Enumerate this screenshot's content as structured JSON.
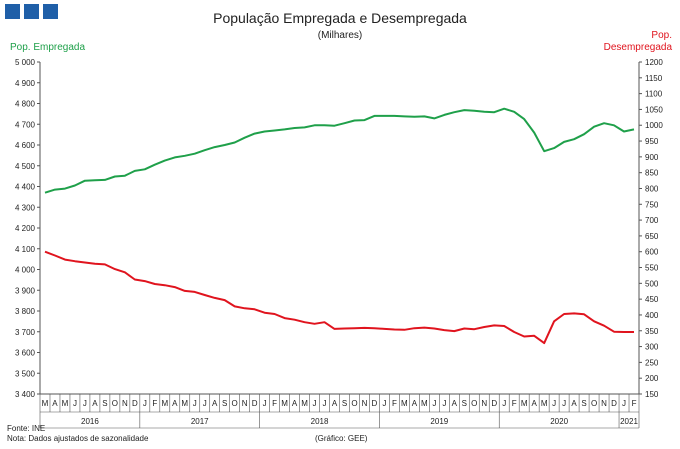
{
  "header": {
    "title": "População Empregada e Desempregada",
    "subtitle": "(Milhares)"
  },
  "axes": {
    "left_label": "Pop. Empregada",
    "right_label_line1": "Pop.",
    "right_label_line2": "Desempregada"
  },
  "footer": {
    "source": "Fonte: INE",
    "note": "Nota: Dados ajustados de sazonalidade",
    "credit": "(Gráfico: GEE)"
  },
  "colors": {
    "employed": "#1fa04a",
    "unemployed": "#e0141e",
    "logo": "#1f5fa8",
    "axis": "#555555"
  },
  "chart_data": {
    "type": "line",
    "title": "População Empregada e Desempregada",
    "subtitle": "(Milhares)",
    "x": [
      "M",
      "A",
      "M",
      "J",
      "J",
      "A",
      "S",
      "O",
      "N",
      "D",
      "J",
      "F",
      "M",
      "A",
      "M",
      "J",
      "J",
      "A",
      "S",
      "O",
      "N",
      "D",
      "J",
      "F",
      "M",
      "A",
      "M",
      "J",
      "J",
      "A",
      "S",
      "O",
      "N",
      "D",
      "J",
      "F",
      "M",
      "A",
      "M",
      "J",
      "J",
      "A",
      "S",
      "O",
      "N",
      "D",
      "J",
      "F",
      "M",
      "A",
      "M",
      "J",
      "J",
      "A",
      "S",
      "O",
      "N",
      "D",
      "J",
      "F"
    ],
    "year_labels": [
      {
        "label": "2016",
        "start": 0,
        "end": 9
      },
      {
        "label": "2017",
        "start": 10,
        "end": 21
      },
      {
        "label": "2018",
        "start": 22,
        "end": 33
      },
      {
        "label": "2019",
        "start": 34,
        "end": 45
      },
      {
        "label": "2020",
        "start": 46,
        "end": 57
      },
      {
        "label": "2021",
        "start": 58,
        "end": 59
      }
    ],
    "y_left": {
      "label": "Pop. Empregada",
      "min": 3400,
      "max": 5000,
      "step": 100
    },
    "y_right": {
      "label": "Pop. Desempregada",
      "min": 150,
      "max": 1200,
      "step": 50
    },
    "series": [
      {
        "name": "Pop. Empregada",
        "axis": "left",
        "values": [
          4370,
          4385,
          4390,
          4405,
          4428,
          4430,
          4432,
          4448,
          4452,
          4475,
          4483,
          4505,
          4525,
          4540,
          4548,
          4558,
          4575,
          4590,
          4600,
          4612,
          4635,
          4655,
          4665,
          4670,
          4675,
          4682,
          4685,
          4695,
          4695,
          4693,
          4705,
          4718,
          4720,
          4740,
          4740,
          4740,
          4738,
          4736,
          4738,
          4728,
          4745,
          4758,
          4768,
          4765,
          4760,
          4758,
          4775,
          4760,
          4725,
          4660,
          4570,
          4585,
          4615,
          4628,
          4652,
          4688,
          4705,
          4695,
          4665,
          4675
        ]
      },
      {
        "name": "Pop. Desempregada",
        "axis": "right",
        "values": [
          600,
          588,
          575,
          570,
          566,
          562,
          560,
          545,
          535,
          512,
          507,
          498,
          494,
          488,
          476,
          473,
          463,
          454,
          447,
          427,
          421,
          418,
          407,
          403,
          390,
          385,
          377,
          372,
          377,
          356,
          357,
          358,
          359,
          358,
          356,
          354,
          353,
          358,
          360,
          357,
          352,
          349,
          357,
          355,
          362,
          367,
          365,
          346,
          332,
          334,
          311,
          380,
          403,
          405,
          402,
          380,
          366,
          347,
          346,
          346
        ]
      }
    ]
  }
}
